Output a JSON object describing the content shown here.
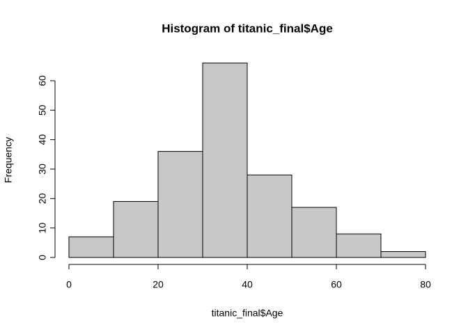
{
  "chart_data": {
    "type": "histogram",
    "title": "Histogram of titanic_final$Age",
    "x_label": "titanic_final$Age",
    "y_label": "Frequency",
    "bins": [
      0,
      10,
      20,
      30,
      40,
      50,
      60,
      70,
      80
    ],
    "values": [
      7,
      19,
      36,
      66,
      28,
      17,
      8,
      2
    ],
    "color": "#c8c8c8",
    "xlim": [
      0,
      80
    ],
    "xticks": [
      0,
      20,
      40,
      60,
      80
    ],
    "ylim": [
      0,
      66
    ],
    "yticks": [
      0,
      10,
      20,
      30,
      40,
      50,
      60
    ]
  }
}
